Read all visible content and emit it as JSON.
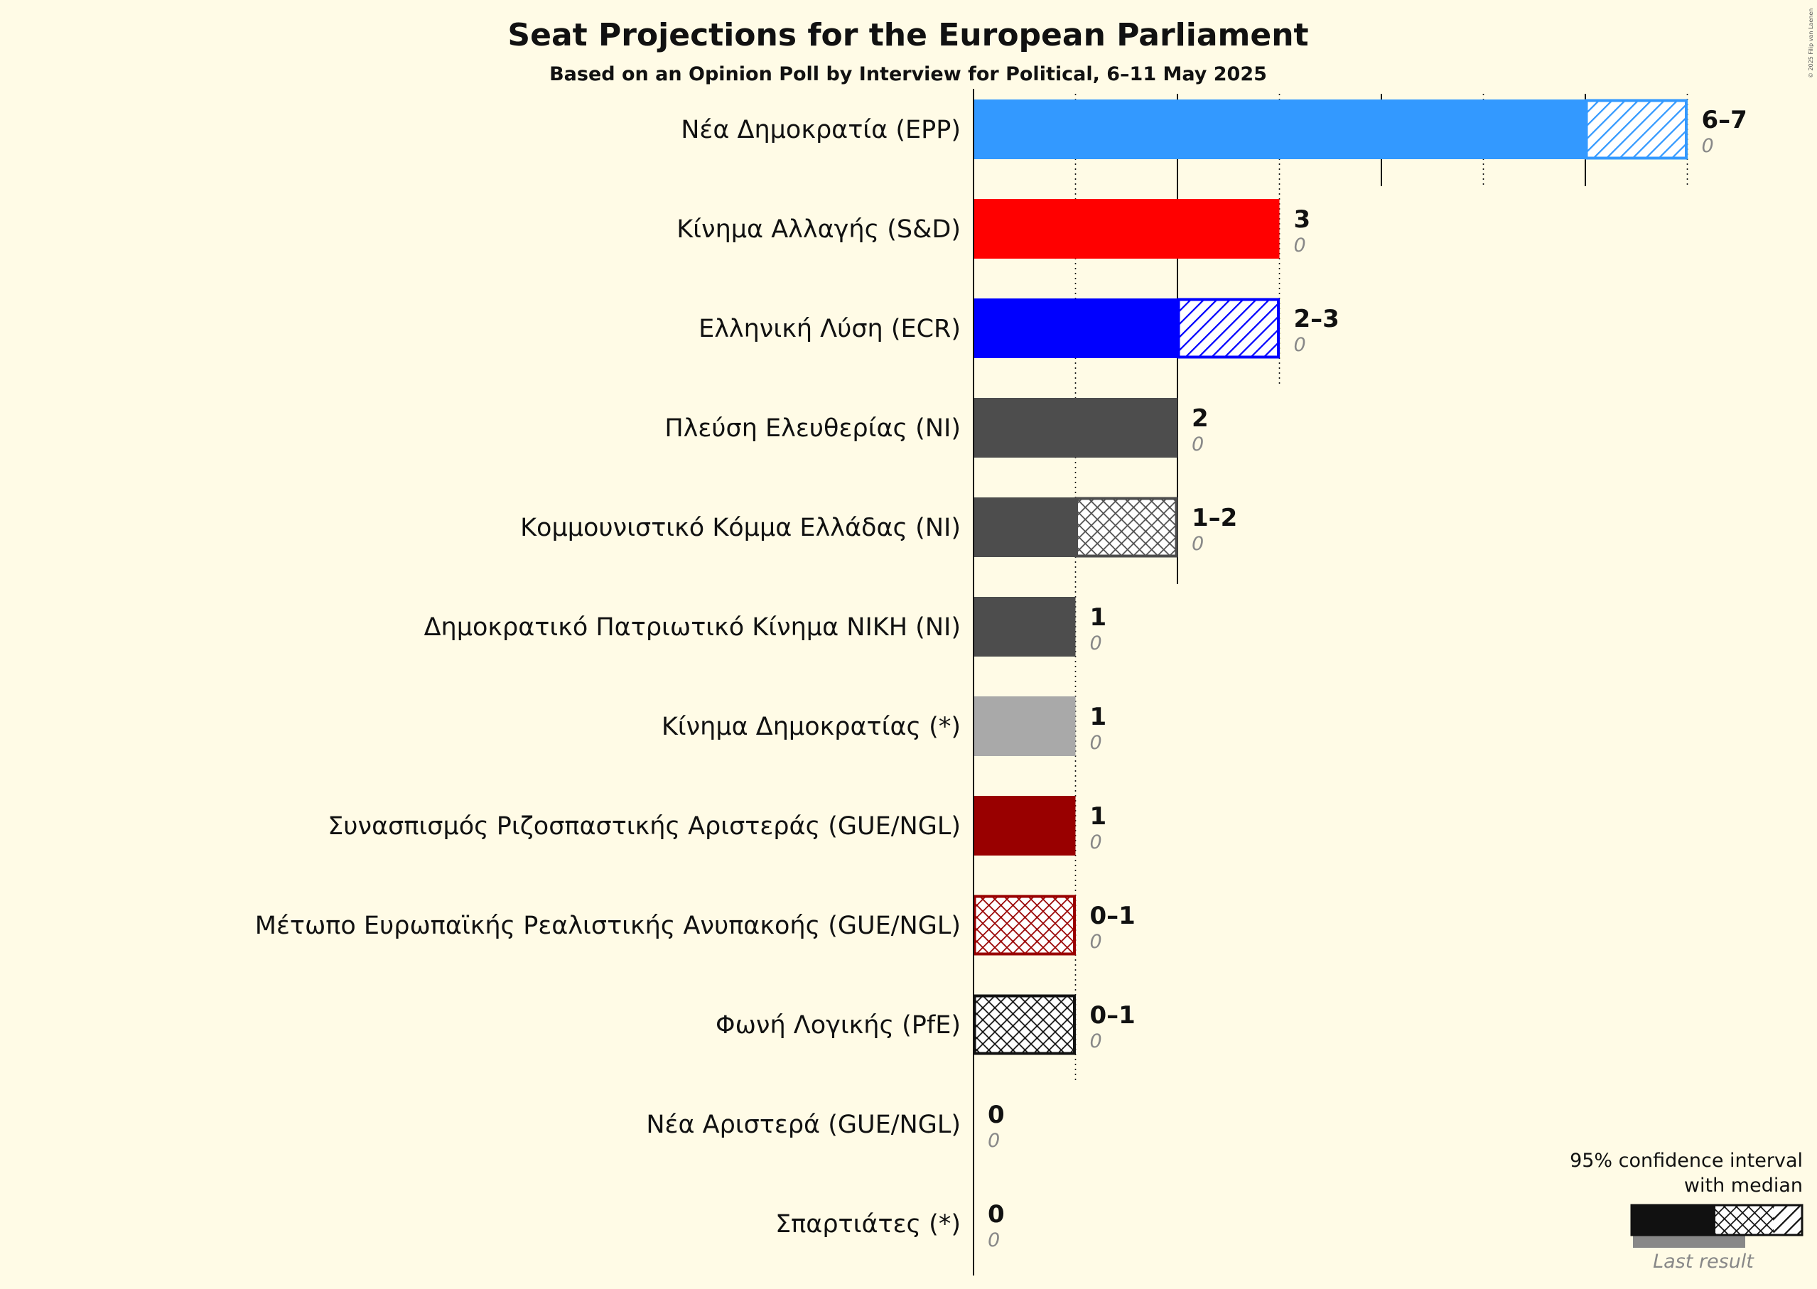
{
  "chart_data": {
    "type": "bar",
    "orientation": "horizontal",
    "title": "Seat Projections for the European Parliament",
    "subtitle": "Based on an Opinion Poll by Interview for Political, 6–11 May 2025",
    "xlim": [
      0,
      7
    ],
    "grid": true,
    "legend_position": "bottom-right",
    "parties": [
      {
        "name": "Νέα Δημοκρατία (EPP)",
        "low": 6,
        "high": 7,
        "median": 7,
        "label": "6–7",
        "last_result": "0",
        "color": "#3399FF"
      },
      {
        "name": "Κίνημα Αλλαγής (S&D)",
        "low": 3,
        "high": 3,
        "median": 3,
        "label": "3",
        "last_result": "0",
        "color": "#FF0000"
      },
      {
        "name": "Ελληνική Λύση (ECR)",
        "low": 2,
        "high": 3,
        "median": 3,
        "label": "2–3",
        "last_result": "0",
        "color": "#0000FF"
      },
      {
        "name": "Πλεύση Ελευθερίας (NI)",
        "low": 2,
        "high": 2,
        "median": 2,
        "label": "2",
        "last_result": "0",
        "color": "#4D4D4D"
      },
      {
        "name": "Κομμουνιστικό Κόμμα Ελλάδας (NI)",
        "low": 1,
        "high": 2,
        "median": 1,
        "label": "1–2",
        "last_result": "0",
        "color": "#4D4D4D"
      },
      {
        "name": "Δημοκρατικό Πατριωτικό Κίνημα ΝΙΚΗ (NI)",
        "low": 1,
        "high": 1,
        "median": 1,
        "label": "1",
        "last_result": "0",
        "color": "#4D4D4D"
      },
      {
        "name": "Κίνημα Δημοκρατίας (*)",
        "low": 1,
        "high": 1,
        "median": 1,
        "label": "1",
        "last_result": "0",
        "color": "#A9A9A9"
      },
      {
        "name": "Συνασπισμός Ριζοσπαστικής Αριστεράς (GUE/NGL)",
        "low": 1,
        "high": 1,
        "median": 1,
        "label": "1",
        "last_result": "0",
        "color": "#990000"
      },
      {
        "name": "Μέτωπο Ευρωπαϊκής Ρεαλιστικής Ανυπακοής (GUE/NGL)",
        "low": 0,
        "high": 1,
        "median": 0,
        "label": "0–1",
        "last_result": "0",
        "color": "#990000"
      },
      {
        "name": "Φωνή Λογικής (PfE)",
        "low": 0,
        "high": 1,
        "median": 0,
        "label": "0–1",
        "last_result": "0",
        "color": "#111111"
      },
      {
        "name": "Νέα Αριστερά (GUE/NGL)",
        "low": 0,
        "high": 0,
        "median": 0,
        "label": "0",
        "last_result": "0",
        "color": "#111111"
      },
      {
        "name": "Σπαρτιάτες (*)",
        "low": 0,
        "high": 0,
        "median": 0,
        "label": "0",
        "last_result": "0",
        "color": "#111111"
      }
    ],
    "legend": {
      "line1": "95% confidence interval",
      "line2": "with median",
      "last_result": "Last result"
    },
    "copyright": "© 2025 Filip van Laenen"
  }
}
